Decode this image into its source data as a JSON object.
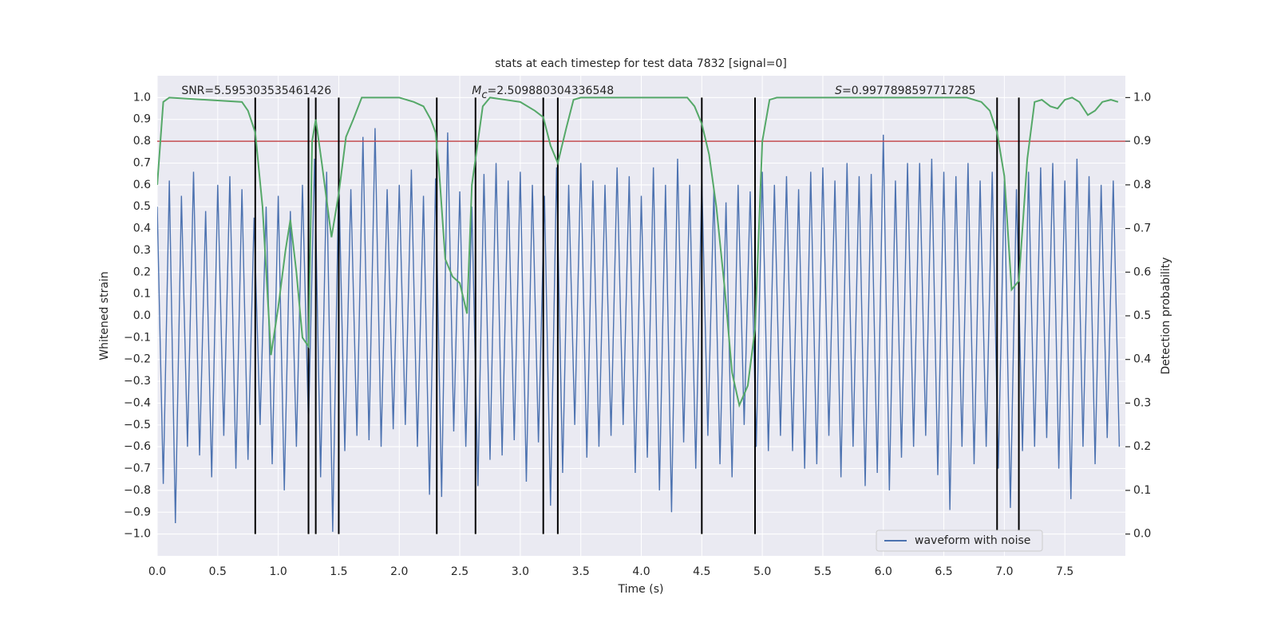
{
  "chart_data": {
    "type": "line",
    "title": "stats at each timestep for test data 7832 [signal=0]",
    "x_label": "Time (s)",
    "y_label": "Whitened strain",
    "y2_label": "Detection probability",
    "xlim": [
      0,
      8
    ],
    "ylim": [
      -1.1,
      1.1
    ],
    "y2lim": [
      -0.05,
      1.05
    ],
    "xticks": [
      {
        "value": 0,
        "label": "0.0"
      },
      0.5,
      {
        "value": 1,
        "label": "1.0"
      },
      1.5,
      {
        "value": 2,
        "label": "2.0"
      },
      2.5,
      {
        "value": 3,
        "label": "3.0"
      },
      3.5,
      {
        "value": 4,
        "label": "4.0"
      },
      4.5,
      {
        "value": 5,
        "label": "5.0"
      },
      5.5,
      {
        "value": 6,
        "label": "6.0"
      },
      6.5,
      {
        "value": 7,
        "label": "7.0"
      },
      7.5
    ],
    "yticks": [
      {
        "value": -1,
        "label": "−1.0"
      },
      {
        "value": -0.9,
        "label": "−0.9"
      },
      {
        "value": -0.8,
        "label": "−0.8"
      },
      {
        "value": -0.7,
        "label": "−0.7"
      },
      {
        "value": -0.6,
        "label": "−0.6"
      },
      {
        "value": -0.5,
        "label": "−0.5"
      },
      {
        "value": -0.4,
        "label": "−0.4"
      },
      {
        "value": -0.3,
        "label": "−0.3"
      },
      {
        "value": -0.2,
        "label": "−0.2"
      },
      {
        "value": -0.1,
        "label": "−0.1"
      },
      {
        "value": 0,
        "label": "0.0"
      },
      0.1,
      0.2,
      0.3,
      0.4,
      0.5,
      0.6,
      0.7,
      0.8,
      0.9,
      {
        "value": 1,
        "label": "1.0"
      }
    ],
    "y2ticks": [
      {
        "value": 0,
        "label": "0.0"
      },
      0.1,
      0.2,
      0.3,
      0.4,
      0.5,
      0.6,
      0.7,
      0.8,
      0.9,
      {
        "value": 1,
        "label": "1.0"
      }
    ],
    "grid": true,
    "legend": "lower right",
    "series": [
      {
        "name": "waveform with noise",
        "color": "#4c72b0",
        "x": [
          0,
          0.05,
          0.1,
          0.15,
          0.2,
          0.25,
          0.3,
          0.35,
          0.4,
          0.45,
          0.5,
          0.55,
          0.6,
          0.65,
          0.7,
          0.75,
          0.8,
          0.85,
          0.9,
          0.95,
          1,
          1.05,
          1.1,
          1.15,
          1.2,
          1.25,
          1.3,
          1.35,
          1.4,
          1.45,
          1.5,
          1.55,
          1.6,
          1.65,
          1.7,
          1.75,
          1.8,
          1.85,
          1.9,
          1.95,
          2,
          2.05,
          2.1,
          2.15,
          2.2,
          2.25,
          2.3,
          2.35,
          2.4,
          2.45,
          2.5,
          2.55,
          2.6,
          2.65,
          2.7,
          2.75,
          2.8,
          2.85,
          2.9,
          2.95,
          3,
          3.05,
          3.1,
          3.15,
          3.2,
          3.25,
          3.3,
          3.35,
          3.4,
          3.45,
          3.5,
          3.55,
          3.6,
          3.65,
          3.7,
          3.75,
          3.8,
          3.85,
          3.9,
          3.95,
          4,
          4.05,
          4.1,
          4.15,
          4.2,
          4.25,
          4.3,
          4.35,
          4.4,
          4.45,
          4.5,
          4.55,
          4.6,
          4.65,
          4.7,
          4.75,
          4.8,
          4.85,
          4.9,
          4.95,
          5,
          5.05,
          5.1,
          5.15,
          5.2,
          5.25,
          5.3,
          5.35,
          5.4,
          5.45,
          5.5,
          5.55,
          5.6,
          5.65,
          5.7,
          5.75,
          5.8,
          5.85,
          5.9,
          5.95,
          6,
          6.05,
          6.1,
          6.15,
          6.2,
          6.25,
          6.3,
          6.35,
          6.4,
          6.45,
          6.5,
          6.55,
          6.6,
          6.65,
          6.7,
          6.75,
          6.8,
          6.85,
          6.9,
          6.95,
          7,
          7.05,
          7.1,
          7.15,
          7.2,
          7.25,
          7.3,
          7.35,
          7.4,
          7.45,
          7.5,
          7.55,
          7.6,
          7.65,
          7.7,
          7.75,
          7.8,
          7.85,
          7.9,
          7.95
        ],
        "values": [
          0.5,
          -0.77,
          0.62,
          -0.95,
          0.55,
          -0.6,
          0.66,
          -0.64,
          0.48,
          -0.74,
          0.6,
          -0.55,
          0.64,
          -0.7,
          0.58,
          -0.66,
          0.45,
          -0.5,
          0.5,
          -0.68,
          0.55,
          -0.8,
          0.48,
          -0.6,
          0.6,
          -0.5,
          0.72,
          -0.74,
          0.66,
          -0.99,
          0.64,
          -0.62,
          0.58,
          -0.55,
          0.82,
          -0.57,
          0.86,
          -0.6,
          0.58,
          -0.52,
          0.6,
          -0.5,
          0.67,
          -0.6,
          0.55,
          -0.82,
          0.63,
          -0.83,
          0.84,
          -0.53,
          0.57,
          -0.6,
          0.5,
          -0.78,
          0.65,
          -0.66,
          0.7,
          -0.64,
          0.62,
          -0.57,
          0.66,
          -0.76,
          0.6,
          -0.58,
          0.55,
          -0.87,
          0.68,
          -0.72,
          0.6,
          -0.5,
          0.7,
          -0.65,
          0.62,
          -0.6,
          0.6,
          -0.55,
          0.68,
          -0.5,
          0.64,
          -0.72,
          0.55,
          -0.65,
          0.68,
          -0.8,
          0.6,
          -0.9,
          0.72,
          -0.58,
          0.6,
          -0.7,
          0.63,
          -0.55,
          0.58,
          -0.68,
          0.52,
          -0.74,
          0.6,
          -0.5,
          0.57,
          -0.6,
          0.66,
          -0.62,
          0.6,
          -0.55,
          0.64,
          -0.62,
          0.58,
          -0.7,
          0.66,
          -0.68,
          0.68,
          -0.55,
          0.62,
          -0.74,
          0.7,
          -0.6,
          0.64,
          -0.78,
          0.65,
          -0.72,
          0.83,
          -0.8,
          0.62,
          -0.65,
          0.7,
          -0.6,
          0.7,
          -0.55,
          0.72,
          -0.73,
          0.66,
          -0.89,
          0.64,
          -0.6,
          0.7,
          -0.68,
          0.62,
          -0.6,
          0.66,
          -0.7,
          0.62,
          -0.88,
          0.58,
          -0.62,
          0.66,
          -0.6,
          0.68,
          -0.56,
          0.7,
          -0.7,
          0.62,
          -0.84,
          0.72,
          -0.6,
          0.64,
          -0.68,
          0.6,
          -0.56,
          0.62,
          -0.6
        ]
      },
      {
        "color": "#55a868",
        "axis": "y2",
        "x": [
          0,
          0.05,
          0.1,
          0.7,
          0.75,
          0.81,
          0.87,
          0.94,
          1,
          1.06,
          1.1,
          1.15,
          1.2,
          1.25,
          1.28,
          1.31,
          1.36,
          1.44,
          1.5,
          1.56,
          1.62,
          1.69,
          2,
          2.12,
          2.2,
          2.26,
          2.3,
          2.33,
          2.38,
          2.44,
          2.5,
          2.56,
          2.6,
          2.69,
          2.75,
          3,
          3.12,
          3.19,
          3.25,
          3.31,
          3.38,
          3.44,
          3.5,
          4.38,
          4.44,
          4.5,
          4.56,
          4.62,
          4.69,
          4.75,
          4.81,
          4.88,
          4.94,
          5,
          5.06,
          5.12,
          6.69,
          6.81,
          6.88,
          6.94,
          7,
          7.06,
          7.12,
          7.19,
          7.25,
          7.31,
          7.38,
          7.44,
          7.5,
          7.56,
          7.62,
          7.69,
          7.75,
          7.81,
          7.88,
          7.94
        ],
        "values": [
          0.8,
          0.99,
          1,
          0.99,
          0.97,
          0.92,
          0.75,
          0.41,
          0.52,
          0.65,
          0.72,
          0.6,
          0.45,
          0.43,
          0.9,
          0.95,
          0.85,
          0.68,
          0.78,
          0.91,
          0.95,
          1,
          1,
          0.99,
          0.98,
          0.95,
          0.92,
          0.83,
          0.63,
          0.59,
          0.575,
          0.505,
          0.8,
          0.98,
          1,
          0.99,
          0.97,
          0.955,
          0.89,
          0.85,
          0.93,
          0.995,
          1,
          1,
          0.98,
          0.94,
          0.87,
          0.75,
          0.56,
          0.37,
          0.295,
          0.34,
          0.47,
          0.9,
          0.995,
          1,
          1,
          0.99,
          0.97,
          0.92,
          0.82,
          0.56,
          0.58,
          0.86,
          0.99,
          0.995,
          0.98,
          0.975,
          0.995,
          1,
          0.99,
          0.96,
          0.97,
          0.99,
          0.995,
          0.99
        ]
      }
    ],
    "vlines": {
      "x": [
        0.81,
        1.25,
        1.31,
        1.5,
        2.31,
        2.63,
        3.19,
        3.31,
        4.5,
        4.94,
        6.94,
        7.12
      ],
      "ymin": -1,
      "ymax": 1,
      "color": "#000000"
    },
    "hline": {
      "y": 0.8,
      "color": "#c44e52"
    },
    "annotations": [
      {
        "symbol": "SNR",
        "italic": false,
        "text": "=5.595303535461426",
        "x": 0.2
      },
      {
        "symbol": "M",
        "subscript": "c",
        "italic": true,
        "text": "=2.509880304336548",
        "x": 2.6
      },
      {
        "symbol": "S",
        "italic": true,
        "text": "=0.9977898597717285",
        "x": 5.6
      }
    ]
  }
}
